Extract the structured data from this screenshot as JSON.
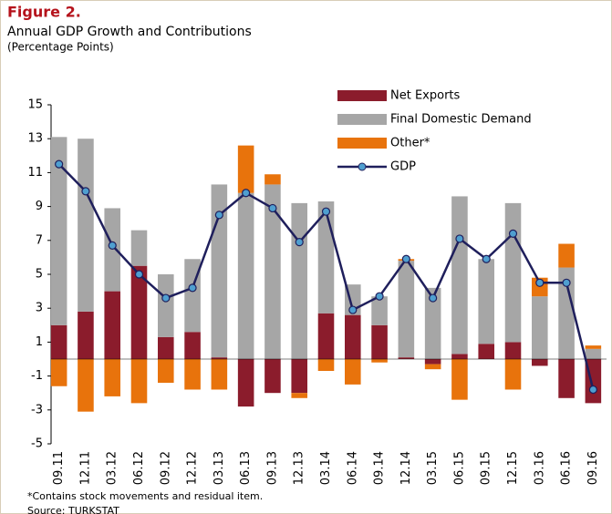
{
  "chart_data": {
    "type": "bar-line",
    "figure_label": "Figure 2.",
    "title": "Annual GDP Growth and Contributions",
    "subtitle": "(Percentage Points)",
    "categories": [
      "09.11",
      "12.11",
      "03.12",
      "06.12",
      "09.12",
      "12.12",
      "03.13",
      "06.13",
      "09.13",
      "12.13",
      "03.14",
      "06.14",
      "09.14",
      "12.14",
      "03.15",
      "06.15",
      "09.15",
      "12.15",
      "03.16",
      "06.16",
      "09.16"
    ],
    "series": [
      {
        "name": "Net Exports",
        "type": "bar",
        "color": "#8b1c2c",
        "values": [
          2.0,
          2.8,
          4.0,
          5.5,
          1.3,
          1.6,
          0.1,
          -2.8,
          -2.0,
          -2.0,
          2.7,
          2.6,
          2.0,
          0.1,
          -0.3,
          0.3,
          0.9,
          1.0,
          -0.4,
          -2.3,
          -2.6
        ]
      },
      {
        "name": "Final Domestic Demand",
        "type": "bar",
        "color": "#a6a6a6",
        "values": [
          11.1,
          10.2,
          4.9,
          2.1,
          3.7,
          4.3,
          10.2,
          9.8,
          10.3,
          9.2,
          6.6,
          1.8,
          1.7,
          5.7,
          4.2,
          9.3,
          5.0,
          8.2,
          3.7,
          5.4,
          0.6
        ]
      },
      {
        "name": "Other*",
        "type": "bar",
        "color": "#e8730c",
        "values": [
          -1.6,
          -3.1,
          -2.2,
          -2.6,
          -1.4,
          -1.8,
          -1.8,
          2.8,
          0.6,
          -0.3,
          -0.7,
          -1.5,
          -0.2,
          0.1,
          -0.3,
          -2.4,
          0,
          -1.8,
          1.1,
          1.4,
          0.2
        ]
      },
      {
        "name": "GDP",
        "type": "line",
        "color": "#1f1f5c",
        "marker_color": "#4f9fd0",
        "values": [
          11.5,
          9.9,
          6.7,
          5.0,
          3.6,
          4.2,
          8.5,
          9.8,
          8.9,
          6.9,
          8.7,
          2.9,
          3.7,
          5.9,
          3.6,
          7.1,
          5.9,
          7.4,
          4.5,
          4.5,
          -1.8
        ]
      }
    ],
    "ylim": [
      -5,
      15
    ],
    "yticks": [
      -5,
      -3,
      -1,
      1,
      3,
      5,
      7,
      9,
      11,
      13,
      15
    ],
    "legend": "upper right",
    "footnote": "*Contains stock movements and residual item.",
    "source": "Source: TURKSTAT"
  }
}
